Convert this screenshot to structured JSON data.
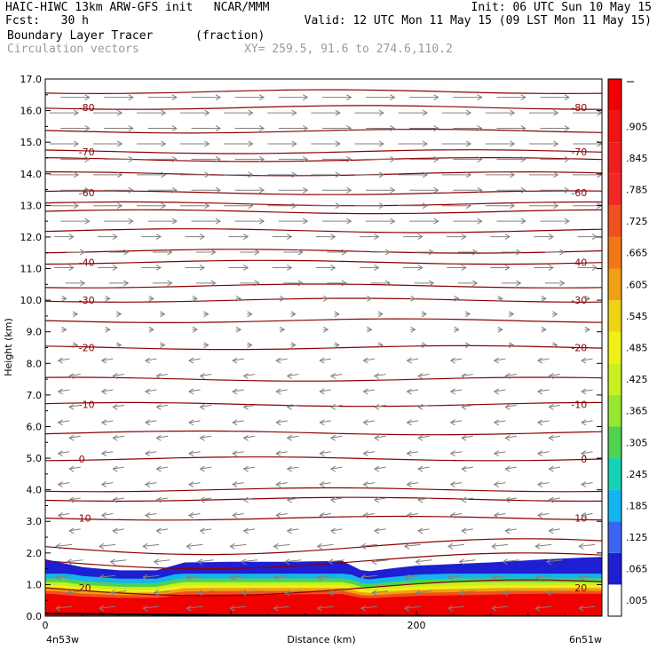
{
  "header": {
    "line1_left": "HAIC-HIWC 13km ARW-GFS init   NCAR/MMM",
    "line1_right": "Init: 06 UTC Sun 10 May 15",
    "fcst": "Fcst:   30 h",
    "valid": "Valid: 12 UTC Mon 11 May 15 (09 LST Mon 11 May 15)",
    "field": "Boundary Layer Tracer",
    "field_units": "(fraction)",
    "overlay": "Circulation vectors",
    "xy": "XY= 259.5, 91.6 to 274.6,110.2"
  },
  "colors": {
    "contour": "#8b0000",
    "vector": "#808080",
    "colorbar": [
      "#ffffff",
      "#1e1ed2",
      "#3c64f0",
      "#14b4f0",
      "#14d2b4",
      "#50d250",
      "#96e632",
      "#c8f01e",
      "#f0f014",
      "#f0d214",
      "#f0a014",
      "#f07814",
      "#f0501e",
      "#f02828",
      "#f01e1e",
      "#f01414",
      "#f00000"
    ]
  },
  "chart_data": {
    "type": "cross-section",
    "title": "Boundary Layer Tracer",
    "xlabel": "Distance (km)",
    "ylabel": "Height (km)",
    "xlim": [
      0,
      300
    ],
    "ylim": [
      0,
      17
    ],
    "x_tick_labels": [
      {
        "x": 0,
        "label": "0"
      },
      {
        "x": 200,
        "label": "200"
      }
    ],
    "x_end_labels": {
      "left": "4n53w",
      "right": "6n51w"
    },
    "y_ticks": [
      0.0,
      1.0,
      2.0,
      3.0,
      4.0,
      5.0,
      6.0,
      7.0,
      8.0,
      9.0,
      10.0,
      11.0,
      12.0,
      13.0,
      14.0,
      15.0,
      16.0,
      17.0
    ],
    "y_tick_labels": [
      "0.0",
      "1.0",
      "2.0",
      "3.0",
      "4.0",
      "5.0",
      "6.0",
      "7.0",
      "8.0",
      "9.0",
      "10.0",
      "11.0",
      "12.0",
      "13.0",
      "14.0",
      "15.0",
      "16.0",
      "17.0"
    ],
    "colorbar_labels": [
      ".005",
      ".065",
      ".125",
      ".185",
      ".245",
      ".305",
      ".365",
      ".425",
      ".485",
      ".545",
      ".605",
      ".665",
      ".725",
      ".785",
      ".845",
      ".905"
    ],
    "tracer_top_km": [
      {
        "x": 0,
        "z": 1.8
      },
      {
        "x": 20,
        "z": 1.55
      },
      {
        "x": 40,
        "z": 1.45
      },
      {
        "x": 60,
        "z": 1.45
      },
      {
        "x": 75,
        "z": 1.7
      },
      {
        "x": 100,
        "z": 1.72
      },
      {
        "x": 130,
        "z": 1.72
      },
      {
        "x": 160,
        "z": 1.75
      },
      {
        "x": 172,
        "z": 1.4
      },
      {
        "x": 185,
        "z": 1.5
      },
      {
        "x": 200,
        "z": 1.6
      },
      {
        "x": 240,
        "z": 1.7
      },
      {
        "x": 270,
        "z": 1.8
      },
      {
        "x": 300,
        "z": 1.88
      }
    ],
    "temperature_contours": [
      {
        "label": "20",
        "z": 0.9
      },
      {
        "label": "10",
        "z": 3.1
      },
      {
        "label": "0",
        "z": 4.98
      },
      {
        "label": "-10",
        "z": 6.7
      },
      {
        "label": "-20",
        "z": 8.5
      },
      {
        "label": "-30",
        "z": 10.0
      },
      {
        "label": "-40",
        "z": 11.2
      },
      {
        "label": "-60",
        "z": 13.4
      },
      {
        "label": "-70",
        "z": 14.7
      },
      {
        "label": "-80",
        "z": 16.1
      }
    ],
    "wind_profile": [
      {
        "z_min": 0.0,
        "z_max": 2.5,
        "u": -1.0
      },
      {
        "z_min": 2.5,
        "z_max": 8.5,
        "u": -0.7
      },
      {
        "z_min": 8.5,
        "z_max": 10.5,
        "u": 0.3
      },
      {
        "z_min": 10.5,
        "z_max": 12.5,
        "u": 1.2
      },
      {
        "z_min": 12.5,
        "z_max": 16.5,
        "u": 1.8
      }
    ]
  }
}
